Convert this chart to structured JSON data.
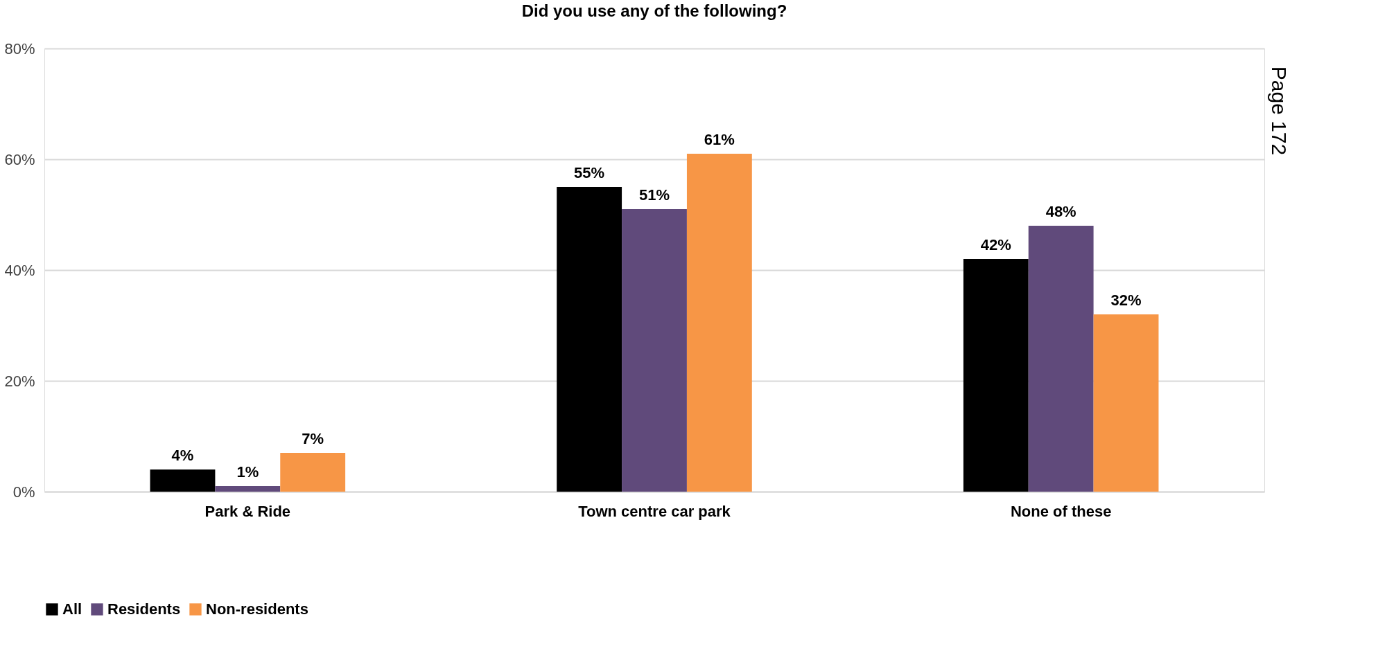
{
  "chart_data": {
    "type": "bar",
    "title": "Did you use any of the following?",
    "categories": [
      "Park & Ride",
      "Town centre car park",
      "None of these"
    ],
    "series": [
      {
        "name": "All",
        "color": "#000000",
        "values": [
          4,
          55,
          42
        ],
        "value_labels": [
          "4%",
          "55%",
          "42%"
        ]
      },
      {
        "name": "Residents",
        "color": "#604a7b",
        "values": [
          1,
          51,
          48
        ],
        "value_labels": [
          "1%",
          "51%",
          "48%"
        ]
      },
      {
        "name": "Non-residents",
        "color": "#f79646",
        "values": [
          7,
          61,
          32
        ],
        "value_labels": [
          "7%",
          "61%",
          "32%"
        ]
      }
    ],
    "ylim": [
      0,
      80
    ],
    "yticks": [
      {
        "value": 0,
        "label": "0%"
      },
      {
        "value": 20,
        "label": "20%"
      },
      {
        "value": 40,
        "label": "40%"
      },
      {
        "value": 60,
        "label": "60%"
      },
      {
        "value": 80,
        "label": "80%"
      }
    ],
    "grid": "y",
    "legend": "bottom",
    "annotations": [
      "Page 172"
    ]
  }
}
